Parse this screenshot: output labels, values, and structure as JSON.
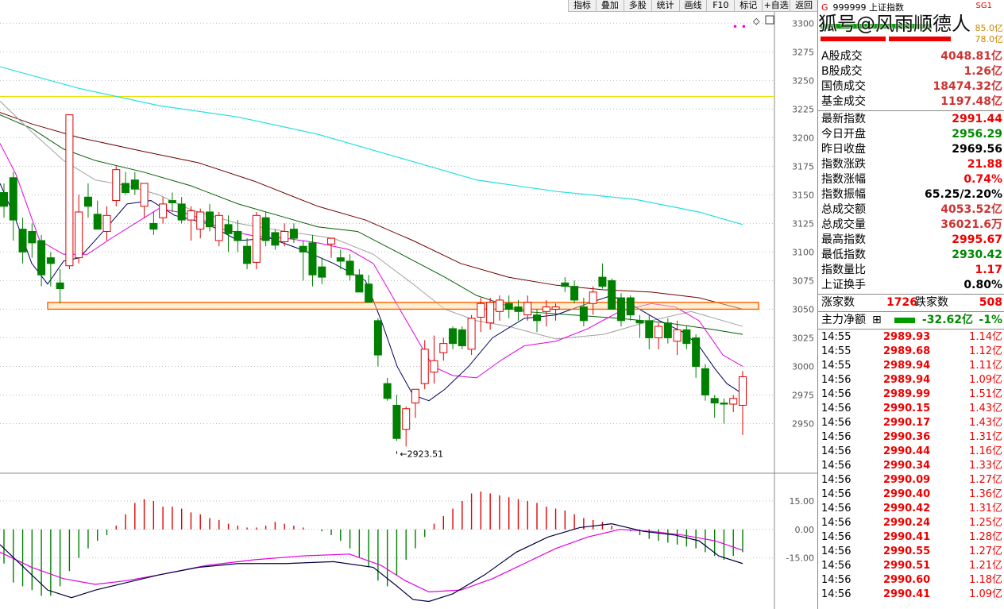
{
  "toolbar": [
    "指标",
    "叠加",
    "多股",
    "统计",
    "画线",
    "F10",
    "标记",
    "+自选",
    "返回"
  ],
  "chart_data": {
    "type": "candlestick",
    "y_ticks": [
      3300,
      3275,
      3250,
      3225,
      3200,
      3175,
      3150,
      3125,
      3100,
      3075,
      3050,
      3025,
      3000,
      2975,
      2950
    ],
    "ylim": [
      2908,
      3312
    ],
    "low_annotation": "2923.51",
    "candles": [
      [
        3152,
        3160,
        3130,
        3140
      ],
      [
        3165,
        3170,
        3110,
        3128
      ],
      [
        3120,
        3130,
        3090,
        3100
      ],
      [
        3118,
        3125,
        3095,
        3108
      ],
      [
        3110,
        3115,
        3070,
        3080
      ],
      [
        3095,
        3100,
        3070,
        3090
      ],
      [
        3073,
        3085,
        3055,
        3068
      ],
      [
        3088,
        3220,
        3085,
        3220
      ],
      [
        3095,
        3150,
        3090,
        3135
      ],
      [
        3148,
        3160,
        3130,
        3140
      ],
      [
        3133,
        3145,
        3120,
        3120
      ],
      [
        3118,
        3140,
        3110,
        3132
      ],
      [
        3145,
        3175,
        3140,
        3172
      ],
      [
        3160,
        3170,
        3150,
        3152
      ],
      [
        3163,
        3170,
        3150,
        3155
      ],
      [
        3140,
        3160,
        3130,
        3160
      ],
      [
        3125,
        3135,
        3115,
        3120
      ],
      [
        3130,
        3148,
        3125,
        3142
      ],
      [
        3145,
        3152,
        3135,
        3143
      ],
      [
        3142,
        3148,
        3125,
        3128
      ],
      [
        3128,
        3140,
        3110,
        3136
      ],
      [
        3120,
        3138,
        3112,
        3135
      ],
      [
        3135,
        3142,
        3118,
        3122
      ],
      [
        3110,
        3135,
        3105,
        3132
      ],
      [
        3124,
        3132,
        3100,
        3116
      ],
      [
        3118,
        3128,
        3100,
        3110
      ],
      [
        3105,
        3112,
        3085,
        3090
      ],
      [
        3091,
        3135,
        3085,
        3132
      ],
      [
        3130,
        3135,
        3105,
        3110
      ],
      [
        3117,
        3120,
        3102,
        3106
      ],
      [
        3109,
        3125,
        3105,
        3118
      ],
      [
        3120,
        3125,
        3108,
        3112
      ],
      [
        3105,
        3110,
        3075,
        3100
      ],
      [
        3108,
        3115,
        3070,
        3080
      ],
      [
        3087,
        3095,
        3072,
        3078
      ],
      [
        3107,
        3112,
        3095,
        3112
      ],
      [
        3095,
        3102,
        3085,
        3092
      ],
      [
        3092,
        3098,
        3075,
        3080
      ],
      [
        3080,
        3085,
        3065,
        3065
      ],
      [
        3072,
        3080,
        3056,
        3056
      ],
      [
        3040,
        3042,
        3000,
        3010
      ],
      [
        2985,
        2990,
        2970,
        2972
      ],
      [
        2966,
        2975,
        2935,
        2937
      ],
      [
        2945,
        2965,
        2930,
        2963
      ],
      [
        2968,
        2980,
        2955,
        2980
      ],
      [
        2985,
        3023,
        2980,
        3015
      ],
      [
        2995,
        3027,
        2985,
        3005
      ],
      [
        3012,
        3025,
        3005,
        3020
      ],
      [
        3033,
        3035,
        3015,
        3020
      ],
      [
        3032,
        3035,
        3015,
        3018
      ],
      [
        3015,
        3045,
        3010,
        3042
      ],
      [
        3043,
        3060,
        3030,
        3055
      ],
      [
        3038,
        3060,
        3032,
        3056
      ],
      [
        3048,
        3062,
        3040,
        3058
      ],
      [
        3055,
        3062,
        3042,
        3050
      ],
      [
        3052,
        3058,
        3040,
        3048
      ],
      [
        3045,
        3062,
        3040,
        3056
      ],
      [
        3045,
        3050,
        3030,
        3040
      ],
      [
        3048,
        3058,
        3035,
        3052
      ],
      [
        3050,
        3055,
        3040,
        3052
      ],
      [
        3073,
        3078,
        3065,
        3070
      ],
      [
        3070,
        3075,
        3055,
        3058
      ],
      [
        3052,
        3060,
        3035,
        3040
      ],
      [
        3055,
        3070,
        3045,
        3065
      ],
      [
        3078,
        3090,
        3068,
        3070
      ],
      [
        3075,
        3077,
        3050,
        3050
      ],
      [
        3060,
        3064,
        3035,
        3040
      ],
      [
        3060,
        3062,
        3040,
        3045
      ],
      [
        3040,
        3045,
        3025,
        3038
      ],
      [
        3040,
        3045,
        3015,
        3025
      ],
      [
        3025,
        3038,
        3015,
        3035
      ],
      [
        3038,
        3042,
        3020,
        3025
      ],
      [
        3022,
        3040,
        3010,
        3032
      ],
      [
        3032,
        3036,
        3015,
        3020
      ],
      [
        3025,
        3028,
        2990,
        3000
      ],
      [
        2998,
        3002,
        2970,
        2975
      ],
      [
        2972,
        2975,
        2955,
        2968
      ],
      [
        2968,
        2972,
        2950,
        2967
      ],
      [
        2967,
        2975,
        2960,
        2972
      ],
      [
        2966,
        2996,
        2940,
        2991
      ]
    ],
    "ma_lines": {
      "yellow": [
        3236,
        3236
      ],
      "cyan": [
        [
          0,
          3262
        ],
        [
          100,
          3243
        ],
        [
          200,
          3228
        ],
        [
          300,
          3218
        ],
        [
          400,
          3203
        ],
        [
          500,
          3183
        ],
        [
          600,
          3163
        ],
        [
          700,
          3153
        ],
        [
          800,
          3146
        ],
        [
          880,
          3135
        ],
        [
          935,
          3124
        ]
      ],
      "brown": [
        [
          0,
          3222
        ],
        [
          40,
          3212
        ],
        [
          100,
          3200
        ],
        [
          180,
          3188
        ],
        [
          250,
          3178
        ],
        [
          320,
          3162
        ],
        [
          400,
          3140
        ],
        [
          460,
          3128
        ],
        [
          520,
          3110
        ],
        [
          580,
          3090
        ],
        [
          640,
          3078
        ],
        [
          700,
          3071
        ],
        [
          760,
          3067
        ],
        [
          820,
          3065
        ],
        [
          880,
          3060
        ],
        [
          935,
          3050
        ]
      ],
      "green": [
        [
          0,
          3220
        ],
        [
          40,
          3208
        ],
        [
          80,
          3190
        ],
        [
          120,
          3180
        ],
        [
          180,
          3170
        ],
        [
          240,
          3158
        ],
        [
          300,
          3142
        ],
        [
          360,
          3130
        ],
        [
          400,
          3122
        ],
        [
          450,
          3118
        ],
        [
          500,
          3100
        ],
        [
          560,
          3078
        ],
        [
          600,
          3062
        ],
        [
          660,
          3048
        ],
        [
          720,
          3045
        ],
        [
          780,
          3042
        ],
        [
          840,
          3038
        ],
        [
          900,
          3032
        ],
        [
          935,
          3028
        ]
      ],
      "gray": [
        [
          0,
          3232
        ],
        [
          40,
          3205
        ],
        [
          80,
          3180
        ],
        [
          120,
          3163
        ],
        [
          160,
          3158
        ],
        [
          200,
          3150
        ],
        [
          240,
          3137
        ],
        [
          300,
          3125
        ],
        [
          360,
          3118
        ],
        [
          420,
          3112
        ],
        [
          470,
          3098
        ],
        [
          520,
          3072
        ],
        [
          560,
          3050
        ],
        [
          600,
          3040
        ],
        [
          640,
          3035
        ],
        [
          700,
          3024
        ],
        [
          760,
          3028
        ],
        [
          820,
          3040
        ],
        [
          870,
          3048
        ],
        [
          935,
          3035
        ]
      ],
      "magenta": [
        [
          0,
          3195
        ],
        [
          20,
          3168
        ],
        [
          50,
          3110
        ],
        [
          80,
          3098
        ],
        [
          110,
          3098
        ],
        [
          140,
          3112
        ],
        [
          170,
          3125
        ],
        [
          200,
          3138
        ],
        [
          240,
          3133
        ],
        [
          280,
          3120
        ],
        [
          320,
          3114
        ],
        [
          360,
          3112
        ],
        [
          400,
          3108
        ],
        [
          440,
          3102
        ],
        [
          470,
          3090
        ],
        [
          495,
          3060
        ],
        [
          520,
          3030
        ],
        [
          545,
          3000
        ],
        [
          570,
          2992
        ],
        [
          600,
          2990
        ],
        [
          630,
          3005
        ],
        [
          660,
          3018
        ],
        [
          700,
          3022
        ],
        [
          740,
          3033
        ],
        [
          780,
          3048
        ],
        [
          820,
          3055
        ],
        [
          850,
          3052
        ],
        [
          880,
          3040
        ],
        [
          910,
          3010
        ],
        [
          935,
          3000
        ]
      ],
      "black": [
        [
          0,
          3160
        ],
        [
          20,
          3128
        ],
        [
          40,
          3090
        ],
        [
          60,
          3072
        ],
        [
          80,
          3092
        ],
        [
          100,
          3095
        ],
        [
          130,
          3118
        ],
        [
          160,
          3142
        ],
        [
          190,
          3145
        ],
        [
          220,
          3132
        ],
        [
          260,
          3125
        ],
        [
          300,
          3110
        ],
        [
          340,
          3112
        ],
        [
          380,
          3102
        ],
        [
          420,
          3090
        ],
        [
          460,
          3075
        ],
        [
          480,
          3040
        ],
        [
          500,
          3000
        ],
        [
          520,
          2975
        ],
        [
          540,
          2970
        ],
        [
          560,
          2980
        ],
        [
          590,
          3000
        ],
        [
          620,
          3025
        ],
        [
          660,
          3042
        ],
        [
          700,
          3045
        ],
        [
          740,
          3055
        ],
        [
          770,
          3062
        ],
        [
          800,
          3052
        ],
        [
          830,
          3040
        ],
        [
          860,
          3030
        ],
        [
          880,
          3018
        ],
        [
          900,
          2998
        ],
        [
          915,
          2985
        ],
        [
          935,
          2976
        ]
      ]
    },
    "macd_ticks": [
      15.0,
      0.0,
      -15.0
    ],
    "macd_ylim": [
      -42,
      28
    ],
    "macd_hist": [
      -18,
      -28,
      -30,
      -32,
      -35,
      -35,
      -30,
      -22,
      -15,
      -10,
      -6,
      -3,
      2,
      8,
      14,
      16,
      15,
      12,
      12,
      11,
      9,
      8,
      6,
      5,
      3,
      2,
      1,
      1,
      2,
      4,
      3,
      2,
      1,
      0,
      -1,
      -3,
      -6,
      -10,
      -15,
      -20,
      -27,
      -30,
      -24,
      -16,
      -10,
      -4,
      3,
      7,
      11,
      15,
      19,
      20,
      19,
      18,
      17,
      16,
      15,
      14,
      12,
      11,
      10,
      8,
      6,
      5,
      4,
      2,
      0,
      -1,
      -3,
      -5,
      -6,
      -7,
      -8,
      -9,
      -10,
      -12,
      -14,
      -16,
      -14,
      -12
    ],
    "macd_dif": [
      [
        0,
        -8
      ],
      [
        30,
        -20
      ],
      [
        60,
        -32
      ],
      [
        90,
        -36
      ],
      [
        120,
        -32
      ],
      [
        160,
        -28
      ],
      [
        200,
        -24
      ],
      [
        250,
        -20
      ],
      [
        300,
        -18
      ],
      [
        360,
        -18
      ],
      [
        420,
        -17
      ],
      [
        470,
        -20
      ],
      [
        500,
        -30
      ],
      [
        520,
        -37
      ],
      [
        540,
        -38
      ],
      [
        570,
        -34
      ],
      [
        610,
        -24
      ],
      [
        650,
        -12
      ],
      [
        690,
        -4
      ],
      [
        730,
        1
      ],
      [
        770,
        3
      ],
      [
        810,
        -1
      ],
      [
        850,
        -3
      ],
      [
        880,
        -6
      ],
      [
        905,
        -14
      ],
      [
        935,
        -18
      ]
    ],
    "macd_dea": [
      [
        0,
        -12
      ],
      [
        40,
        -20
      ],
      [
        80,
        -26
      ],
      [
        120,
        -29
      ],
      [
        160,
        -27
      ],
      [
        200,
        -24
      ],
      [
        260,
        -19
      ],
      [
        320,
        -16
      ],
      [
        380,
        -14
      ],
      [
        440,
        -13
      ],
      [
        480,
        -19
      ],
      [
        510,
        -27
      ],
      [
        540,
        -33
      ],
      [
        580,
        -32
      ],
      [
        620,
        -26
      ],
      [
        660,
        -18
      ],
      [
        700,
        -10
      ],
      [
        740,
        -4
      ],
      [
        780,
        0
      ],
      [
        820,
        -1
      ],
      [
        860,
        -3
      ],
      [
        900,
        -6
      ],
      [
        935,
        -11
      ]
    ]
  },
  "panel": {
    "code": "999999",
    "name": "上证指数",
    "g_label": "G",
    "sg_label": "SG1",
    "top_val1": "85.0亿",
    "top_val2": "78.0亿",
    "watermark": "搜狐号@风雨顺德人",
    "volumes": [
      {
        "label": "A股成交",
        "value": "4048.81亿"
      },
      {
        "label": "B股成交",
        "value": "1.26亿"
      },
      {
        "label": "国债成交",
        "value": "18474.32亿"
      },
      {
        "label": "基金成交",
        "value": "1197.48亿"
      }
    ],
    "stats": [
      {
        "label": "最新指数",
        "value": "2991.44",
        "color": "red"
      },
      {
        "label": "今日开盘",
        "value": "2956.29",
        "color": "grn"
      },
      {
        "label": "昨日收盘",
        "value": "2969.56",
        "color": "blk"
      },
      {
        "label": "指数涨跌",
        "value": "21.88",
        "color": "red"
      },
      {
        "label": "指数涨幅",
        "value": "0.74%",
        "color": "red"
      },
      {
        "label": "指数振幅",
        "value": "65.25/2.20%",
        "color": "blk"
      },
      {
        "label": "总成交额",
        "value": "4053.52亿",
        "color": "org"
      },
      {
        "label": "总成交量",
        "value": "36021.6万",
        "color": "org"
      },
      {
        "label": "最高指数",
        "value": "2995.67",
        "color": "red"
      },
      {
        "label": "最低指数",
        "value": "2930.42",
        "color": "grn"
      },
      {
        "label": "指数量比",
        "value": "1.17",
        "color": "red"
      },
      {
        "label": "上证换手",
        "value": "0.80%",
        "color": "blk"
      }
    ],
    "rise_label": "涨家数",
    "rise_count": "1726",
    "fall_label": "跌家数",
    "fall_count": "508",
    "main_label": "主力净额",
    "main_value": "-32.62亿",
    "main_pct": "-1%",
    "ticks": [
      {
        "t": "14:55",
        "p": "2989.93",
        "v": "1.14亿"
      },
      {
        "t": "14:55",
        "p": "2989.68",
        "v": "1.12亿"
      },
      {
        "t": "14:55",
        "p": "2989.94",
        "v": "1.11亿"
      },
      {
        "t": "14:56",
        "p": "2989.94",
        "v": "1.09亿"
      },
      {
        "t": "14:56",
        "p": "2989.99",
        "v": "1.51亿"
      },
      {
        "t": "14:56",
        "p": "2990.15",
        "v": "1.43亿"
      },
      {
        "t": "14:56",
        "p": "2990.17",
        "v": "1.43亿"
      },
      {
        "t": "14:56",
        "p": "2990.36",
        "v": "1.31亿"
      },
      {
        "t": "14:56",
        "p": "2990.44",
        "v": "1.16亿"
      },
      {
        "t": "14:56",
        "p": "2990.34",
        "v": "1.33亿"
      },
      {
        "t": "14:56",
        "p": "2990.09",
        "v": "1.27亿"
      },
      {
        "t": "14:56",
        "p": "2990.40",
        "v": "1.36亿"
      },
      {
        "t": "14:56",
        "p": "2990.42",
        "v": "1.31亿"
      },
      {
        "t": "14:56",
        "p": "2990.24",
        "v": "1.25亿"
      },
      {
        "t": "14:56",
        "p": "2990.41",
        "v": "1.28亿"
      },
      {
        "t": "14:56",
        "p": "2990.55",
        "v": "1.27亿"
      },
      {
        "t": "14:56",
        "p": "2990.51",
        "v": "1.21亿"
      },
      {
        "t": "14:56",
        "p": "2990.60",
        "v": "1.18亿"
      },
      {
        "t": "14:56",
        "p": "2990.41",
        "v": "1.09亿"
      }
    ],
    "colors": {
      "red": "#e00000",
      "green": "#008000",
      "cyan": "#20e0e0",
      "brown": "#700000",
      "magenta": "#e000e0",
      "yellow": "#e8e000",
      "gray": "#a0a0a0"
    }
  }
}
